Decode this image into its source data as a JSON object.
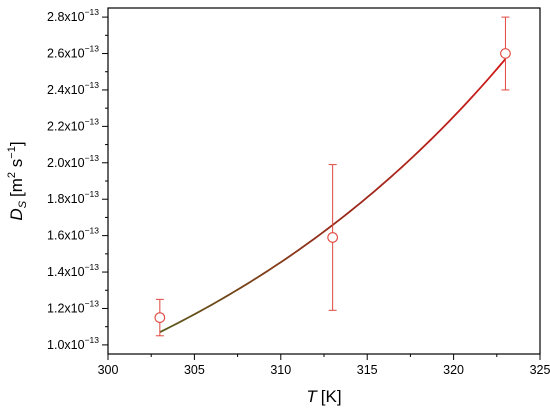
{
  "chart_data": {
    "type": "scatter",
    "title": "",
    "x": {
      "label_var": "T",
      "label_unit": "[K]",
      "range": [
        300,
        325
      ],
      "ticks": [
        "300",
        "305",
        "310",
        "315",
        "320",
        "325"
      ]
    },
    "y": {
      "label_var": "D",
      "label_sub": "S",
      "label_unit_open": "[m",
      "label_unit_sup1": "2",
      "label_unit_mid": " s",
      "label_unit_sup2": "−1",
      "label_unit_close": "]",
      "range": [
        9.5e-14,
        2.85e-13
      ],
      "tick_values": [
        1e-13,
        1.2e-13,
        1.4e-13,
        1.6e-13,
        1.8e-13,
        2e-13,
        2.2e-13,
        2.4e-13,
        2.6e-13,
        2.8e-13
      ],
      "tick_mantissas": [
        "1.0x10",
        "1.2x10",
        "1.4x10",
        "1.6x10",
        "1.8x10",
        "2.0x10",
        "2.2x10",
        "2.4x10",
        "2.6x10",
        "2.8x10"
      ],
      "tick_exponent": "−13"
    },
    "series": [
      {
        "kind": "points_with_error",
        "color": "#e0473f",
        "points": [
          {
            "x": 303,
            "y": 1.15e-13,
            "err": 1e-14
          },
          {
            "x": 313,
            "y": 1.59e-13,
            "err": 4e-14
          },
          {
            "x": 323,
            "y": 2.6e-13,
            "err": 2e-14
          }
        ]
      },
      {
        "kind": "fit_curve",
        "color": "#cc1a1a",
        "color_start": "#5a5a1a",
        "x": [
          303,
          305,
          307,
          309,
          311,
          313,
          315,
          317,
          319,
          321,
          323
        ],
        "y": [
          1.07e-13,
          1.16e-13,
          1.25e-13,
          1.36e-13,
          1.47e-13,
          1.6e-13,
          1.75e-13,
          1.91e-13,
          2.1e-13,
          2.32e-13,
          2.57e-13
        ]
      }
    ],
    "grid": false,
    "legend": "none"
  }
}
